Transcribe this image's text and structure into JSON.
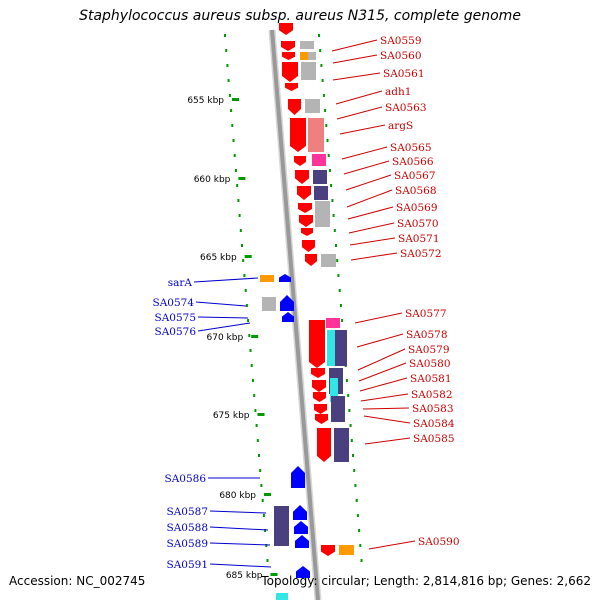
{
  "title": "Staphylococcus aureus subsp. aureus N315, complete genome",
  "accession": "Accession: NC_002745",
  "summary": "Topology: circular; Length: 2,814,816 bp; Genes: 2,662",
  "kbp_ticks": [
    {
      "label": "655 kbp",
      "kbp": 655
    },
    {
      "label": "660 kbp",
      "kbp": 660
    },
    {
      "label": "665 kbp",
      "kbp": 665
    },
    {
      "label": "670 kbp",
      "kbp": 670
    },
    {
      "label": "675 kbp",
      "kbp": 675
    },
    {
      "label": "680 kbp",
      "kbp": 680
    },
    {
      "label": "685 kbp",
      "kbp": 685
    }
  ],
  "forward_genes": [
    {
      "name": "SA0559"
    },
    {
      "name": "SA0560"
    },
    {
      "name": "SA0561"
    },
    {
      "name": "adh1"
    },
    {
      "name": "SA0563"
    },
    {
      "name": "argS"
    },
    {
      "name": "SA0565"
    },
    {
      "name": "SA0566"
    },
    {
      "name": "SA0567"
    },
    {
      "name": "SA0568"
    },
    {
      "name": "SA0569"
    },
    {
      "name": "SA0570"
    },
    {
      "name": "SA0571"
    },
    {
      "name": "SA0572"
    },
    {
      "name": "SA0577"
    },
    {
      "name": "SA0578"
    },
    {
      "name": "SA0579"
    },
    {
      "name": "SA0580"
    },
    {
      "name": "SA0581"
    },
    {
      "name": "SA0582"
    },
    {
      "name": "SA0583"
    },
    {
      "name": "SA0584"
    },
    {
      "name": "SA0585"
    },
    {
      "name": "SA0590"
    }
  ],
  "reverse_genes": [
    {
      "name": "sarA"
    },
    {
      "name": "SA0574"
    },
    {
      "name": "SA0575"
    },
    {
      "name": "SA0576"
    },
    {
      "name": "SA0586"
    },
    {
      "name": "SA0587"
    },
    {
      "name": "SA0588"
    },
    {
      "name": "SA0589"
    },
    {
      "name": "SA0591"
    }
  ],
  "colors": {
    "forward_cds": "#ff0000",
    "reverse_cds": "#0000ff",
    "forward_label": "#cc0000",
    "reverse_label": "#0000cc",
    "backbone": "#999999",
    "tick": "#009900",
    "cog_gray": "#b4b4b4",
    "cog_dark": "#4a4080",
    "cog_cyan": "#33e6e6",
    "cog_orange": "#ff9900",
    "cog_pink": "#ff3399",
    "cog_salmon": "#f08080"
  }
}
